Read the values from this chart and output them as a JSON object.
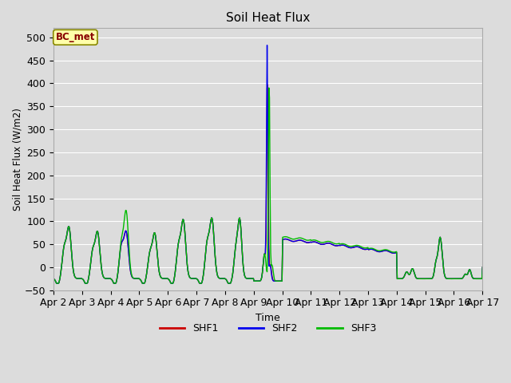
{
  "title": "Soil Heat Flux",
  "ylabel": "Soil Heat Flux (W/m2)",
  "xlabel": "Time",
  "annotation": "BC_met",
  "ylim": [
    -50,
    520
  ],
  "yticks": [
    -50,
    0,
    50,
    100,
    150,
    200,
    250,
    300,
    350,
    400,
    450,
    500
  ],
  "legend": [
    {
      "label": "SHF1",
      "color": "#cc0000"
    },
    {
      "label": "SHF2",
      "color": "#0000ee"
    },
    {
      "label": "SHF3",
      "color": "#00bb00"
    }
  ],
  "background_color": "#dcdcdc",
  "plot_bg_color": "#dcdcdc",
  "grid_color": "#ffffff",
  "line_width": 1.0,
  "xtick_labels": [
    "Apr 2",
    "Apr 3",
    "Apr 4",
    "Apr 5",
    "Apr 6",
    "Apr 7",
    "Apr 8",
    "Apr 9",
    "Apr 10",
    "Apr 11",
    "Apr 12",
    "Apr 13",
    "Apr 14",
    "Apr 15",
    "Apr 16",
    "Apr 17"
  ]
}
